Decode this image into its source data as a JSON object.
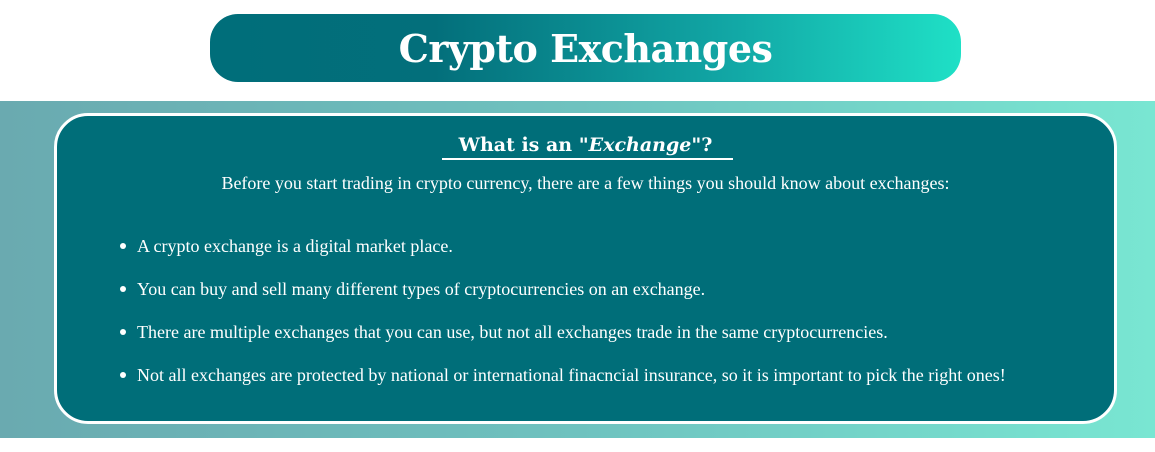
{
  "header": {
    "title": "Crypto Exchanges"
  },
  "card": {
    "heading_prefix": "What is an ",
    "heading_emphasis": "\"Exchange\"",
    "heading_suffix": "?",
    "intro": "Before you start trading in crypto currency, there are a few things you should know about exchanges:",
    "bullets": [
      "A crypto exchange is a digital market place.",
      "You can buy and sell many different types of cryptocurrencies on an exchange.",
      "There are multiple exchanges that you can use, but not all exchanges trade in the same cryptocurrencies.",
      "Not all exchanges are protected by national or international finacncial insurance, so it is important to pick the right ones!"
    ]
  },
  "colors": {
    "card_bg": "#006e79",
    "gradient_start": "#006e7a",
    "gradient_end": "#1fe0c6"
  }
}
